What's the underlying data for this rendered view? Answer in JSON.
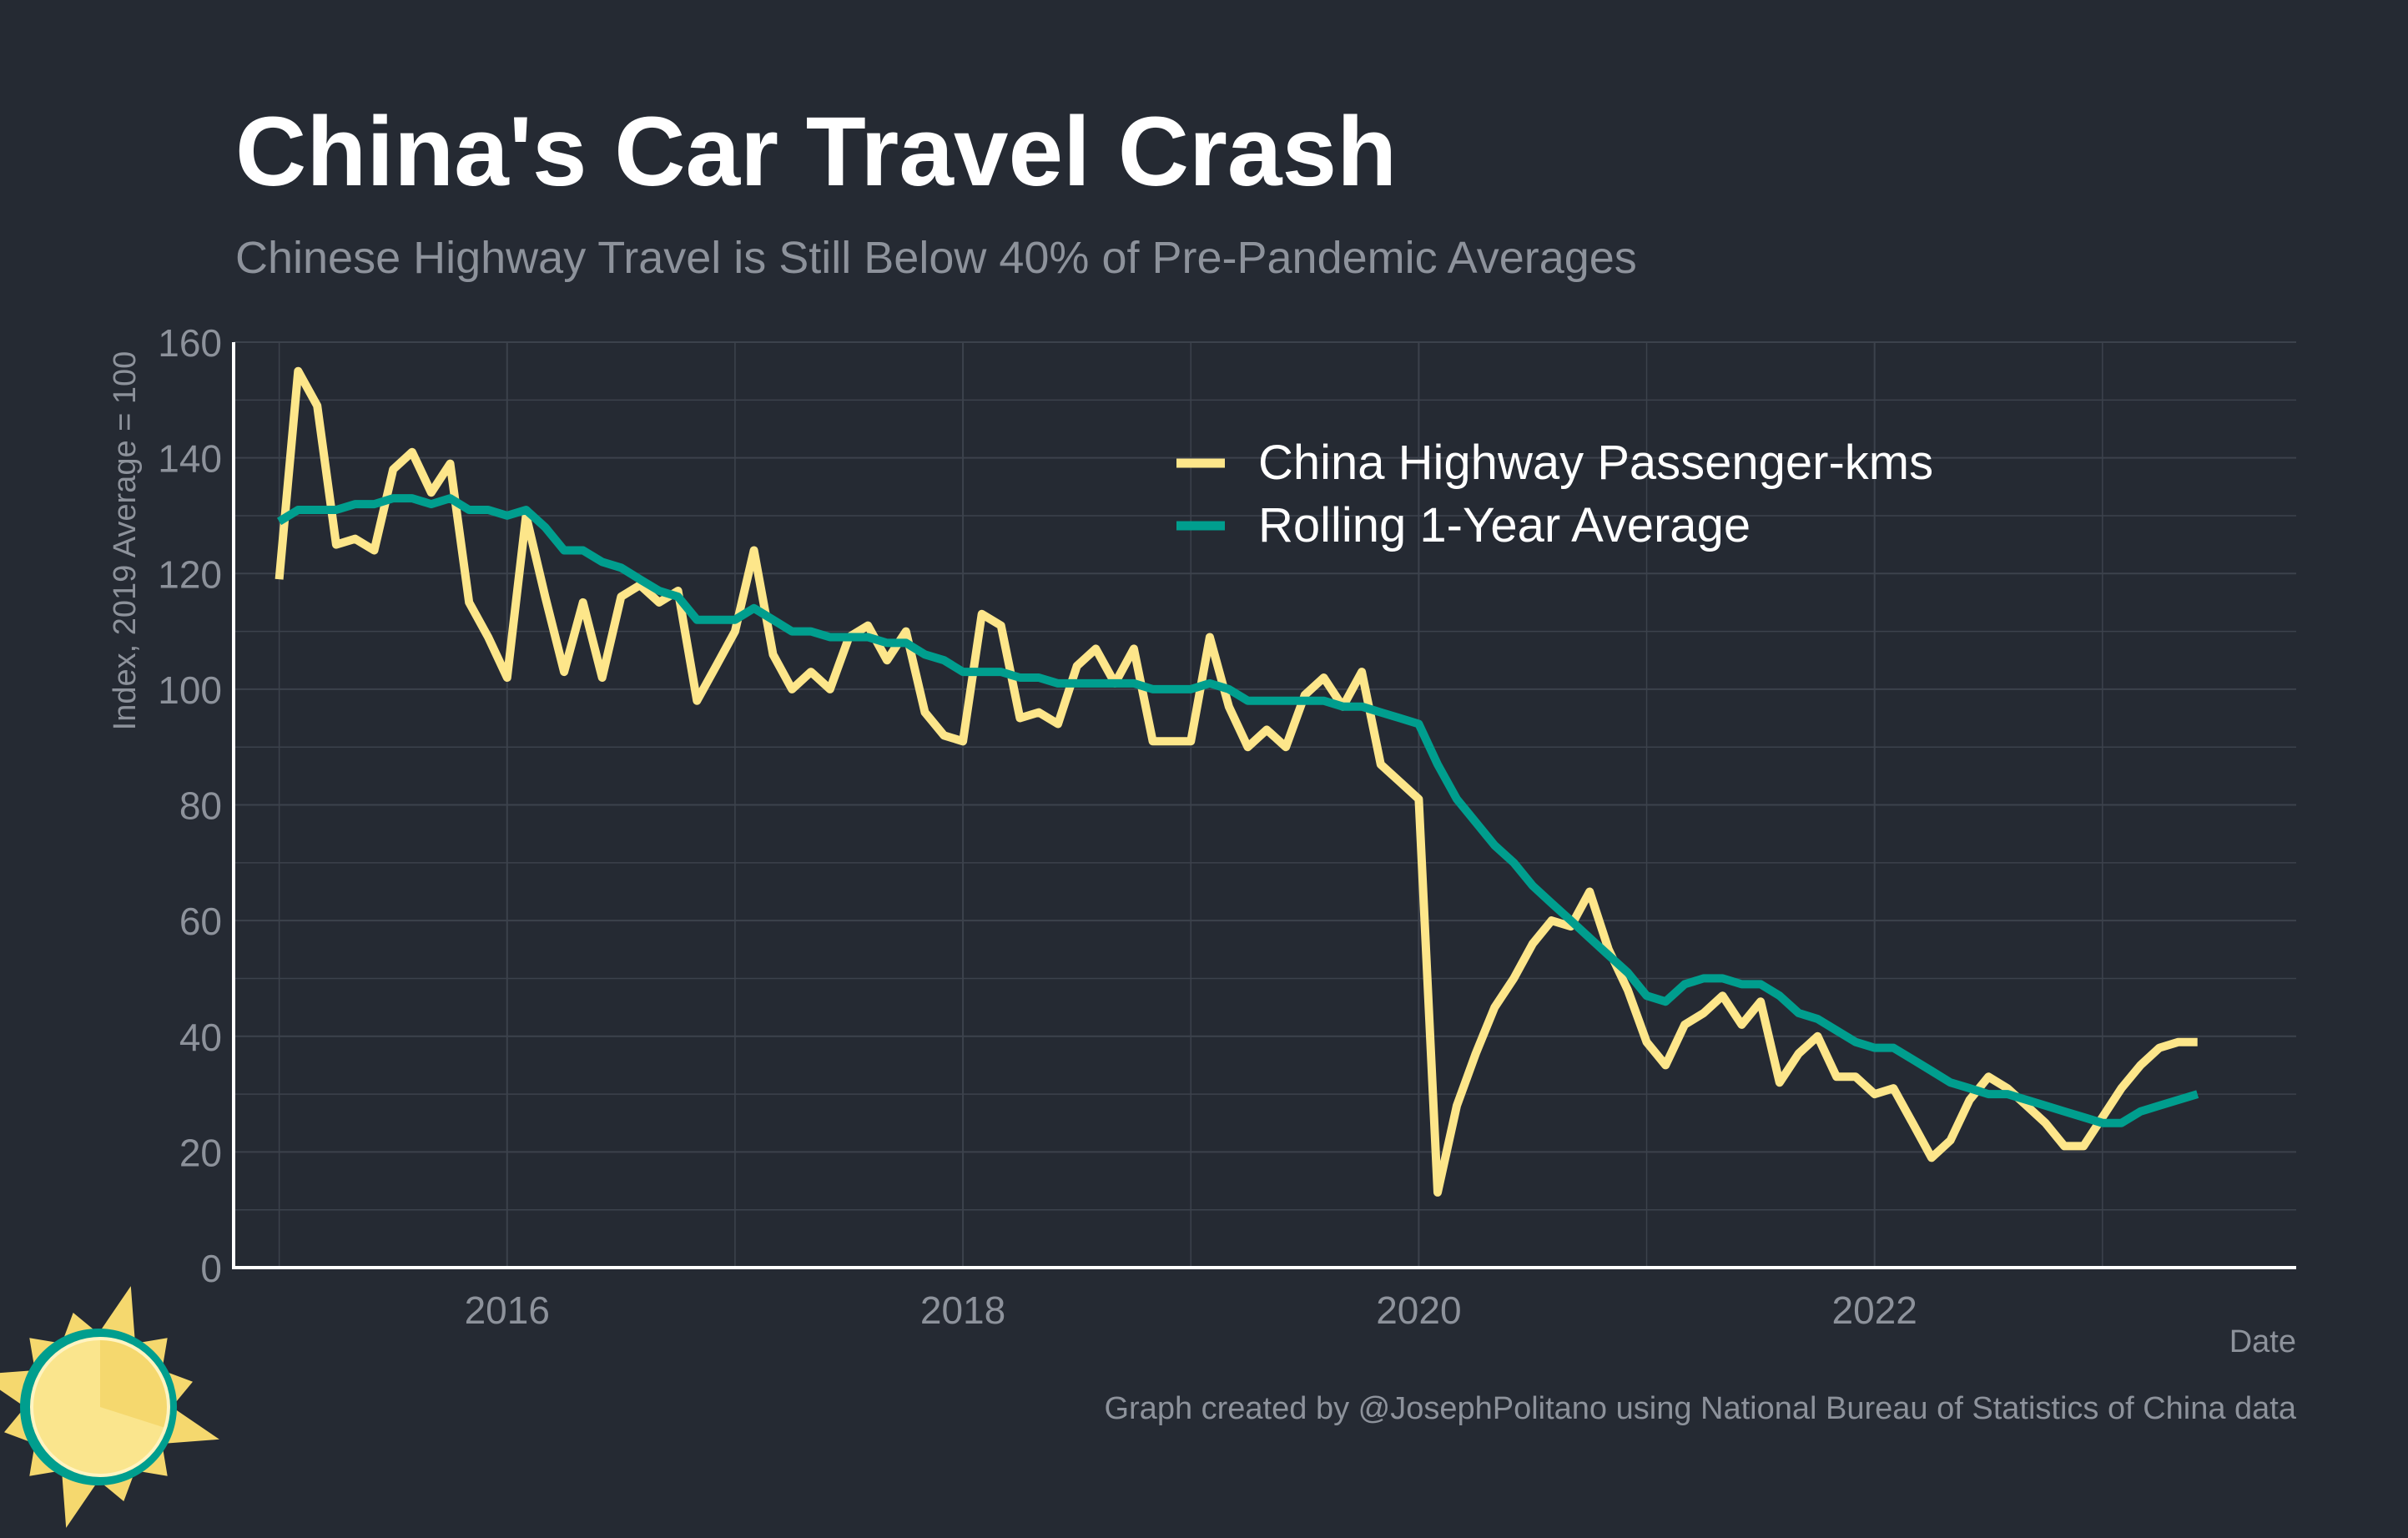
{
  "colors": {
    "background": "#252a33",
    "grid": "#3c424c",
    "axis": "#ffffff",
    "muted_text": "#8d929b",
    "series_raw": "#fde68a",
    "series_avg": "#009e8e",
    "logo_yellow": "#f5d86e",
    "logo_light": "#fae58d",
    "logo_ring": "#009e8e"
  },
  "chart_data": {
    "type": "line",
    "title": "China's Car Travel Crash",
    "subtitle": "Chinese Highway Travel is Still Below 40% of Pre-Pandemic Averages",
    "xlabel": "Date",
    "ylabel": "Index, 2019 Average = 100",
    "xlim": [
      2014.8,
      2023.85
    ],
    "ylim": [
      0,
      160
    ],
    "y_ticks": [
      0,
      20,
      40,
      60,
      80,
      100,
      120,
      140,
      160
    ],
    "x_ticks": [
      2016,
      2018,
      2020,
      2022
    ],
    "grid": true,
    "legend_position": "top-right",
    "series": [
      {
        "name": "China Highway Passenger-kms",
        "color": "#fde68a",
        "x": [
          2015.0,
          2015.083,
          2015.167,
          2015.25,
          2015.333,
          2015.417,
          2015.5,
          2015.583,
          2015.667,
          2015.75,
          2015.833,
          2015.917,
          2016.0,
          2016.083,
          2016.167,
          2016.25,
          2016.333,
          2016.417,
          2016.5,
          2016.583,
          2016.667,
          2016.75,
          2016.833,
          2016.917,
          2017.0,
          2017.083,
          2017.167,
          2017.25,
          2017.333,
          2017.417,
          2017.5,
          2017.583,
          2017.667,
          2017.75,
          2017.833,
          2017.917,
          2018.0,
          2018.083,
          2018.167,
          2018.25,
          2018.333,
          2018.417,
          2018.5,
          2018.583,
          2018.667,
          2018.75,
          2018.833,
          2018.917,
          2019.0,
          2019.083,
          2019.167,
          2019.25,
          2019.333,
          2019.417,
          2019.5,
          2019.583,
          2019.667,
          2019.75,
          2019.833,
          2019.917,
          2020.0,
          2020.083,
          2020.167,
          2020.25,
          2020.333,
          2020.417,
          2020.5,
          2020.583,
          2020.667,
          2020.75,
          2020.833,
          2020.917,
          2021.0,
          2021.083,
          2021.167,
          2021.25,
          2021.333,
          2021.417,
          2021.5,
          2021.583,
          2021.667,
          2021.75,
          2021.833,
          2021.917,
          2022.0,
          2022.083,
          2022.167,
          2022.25,
          2022.333,
          2022.417,
          2022.5,
          2022.583,
          2022.667,
          2022.75,
          2022.833,
          2022.917,
          2023.0,
          2023.083,
          2023.167,
          2023.25,
          2023.333,
          2023.417
        ],
        "values": [
          119,
          155,
          149,
          125,
          126,
          124,
          138,
          141,
          134,
          139,
          115,
          109,
          102,
          130,
          116,
          103,
          115,
          102,
          116,
          118,
          115,
          117,
          98,
          104,
          110,
          124,
          106,
          100,
          103,
          100,
          109,
          111,
          105,
          110,
          96,
          92,
          91,
          113,
          111,
          95,
          96,
          94,
          104,
          107,
          101,
          107,
          91,
          91,
          91,
          109,
          97,
          90,
          93,
          90,
          99,
          102,
          97,
          103,
          87,
          84,
          81,
          13,
          28,
          37,
          45,
          50,
          56,
          60,
          59,
          65,
          55,
          48,
          39,
          35,
          42,
          44,
          47,
          42,
          46,
          32,
          37,
          40,
          33,
          33,
          30,
          31,
          25,
          19,
          22,
          29,
          33,
          31,
          28,
          25,
          21,
          21,
          26,
          31,
          35,
          38,
          39,
          39
        ]
      },
      {
        "name": "Rolling 1-Year Average",
        "color": "#009e8e",
        "x": [
          2015.0,
          2015.083,
          2015.167,
          2015.25,
          2015.333,
          2015.417,
          2015.5,
          2015.583,
          2015.667,
          2015.75,
          2015.833,
          2015.917,
          2016.0,
          2016.083,
          2016.167,
          2016.25,
          2016.333,
          2016.417,
          2016.5,
          2016.583,
          2016.667,
          2016.75,
          2016.833,
          2016.917,
          2017.0,
          2017.083,
          2017.167,
          2017.25,
          2017.333,
          2017.417,
          2017.5,
          2017.583,
          2017.667,
          2017.75,
          2017.833,
          2017.917,
          2018.0,
          2018.083,
          2018.167,
          2018.25,
          2018.333,
          2018.417,
          2018.5,
          2018.583,
          2018.667,
          2018.75,
          2018.833,
          2018.917,
          2019.0,
          2019.083,
          2019.167,
          2019.25,
          2019.333,
          2019.417,
          2019.5,
          2019.583,
          2019.667,
          2019.75,
          2019.833,
          2019.917,
          2020.0,
          2020.083,
          2020.167,
          2020.25,
          2020.333,
          2020.417,
          2020.5,
          2020.583,
          2020.667,
          2020.75,
          2020.833,
          2020.917,
          2021.0,
          2021.083,
          2021.167,
          2021.25,
          2021.333,
          2021.417,
          2021.5,
          2021.583,
          2021.667,
          2021.75,
          2021.833,
          2021.917,
          2022.0,
          2022.083,
          2022.167,
          2022.25,
          2022.333,
          2022.417,
          2022.5,
          2022.583,
          2022.667,
          2022.75,
          2022.833,
          2022.917,
          2023.0,
          2023.083,
          2023.167,
          2023.25,
          2023.333,
          2023.417
        ],
        "values": [
          129,
          131,
          131,
          131,
          132,
          132,
          133,
          133,
          132,
          133,
          131,
          131,
          130,
          131,
          128,
          124,
          124,
          122,
          121,
          119,
          117,
          116,
          112,
          112,
          112,
          114,
          112,
          110,
          110,
          109,
          109,
          109,
          108,
          108,
          106,
          105,
          103,
          103,
          103,
          102,
          102,
          101,
          101,
          101,
          101,
          101,
          100,
          100,
          100,
          101,
          100,
          98,
          98,
          98,
          98,
          98,
          97,
          97,
          96,
          95,
          94,
          87,
          81,
          77,
          73,
          70,
          66,
          63,
          60,
          57,
          54,
          51,
          47,
          46,
          49,
          50,
          50,
          49,
          49,
          47,
          44,
          43,
          41,
          39,
          38,
          38,
          36,
          34,
          32,
          31,
          30,
          30,
          29,
          28,
          27,
          26,
          25,
          25,
          27,
          28,
          29,
          30
        ]
      }
    ]
  },
  "footer": {
    "credit": "Graph created by @JosephPolitano using National Bureau of Statistics of China data"
  },
  "logo": {
    "icon": "sun-logo-icon"
  }
}
